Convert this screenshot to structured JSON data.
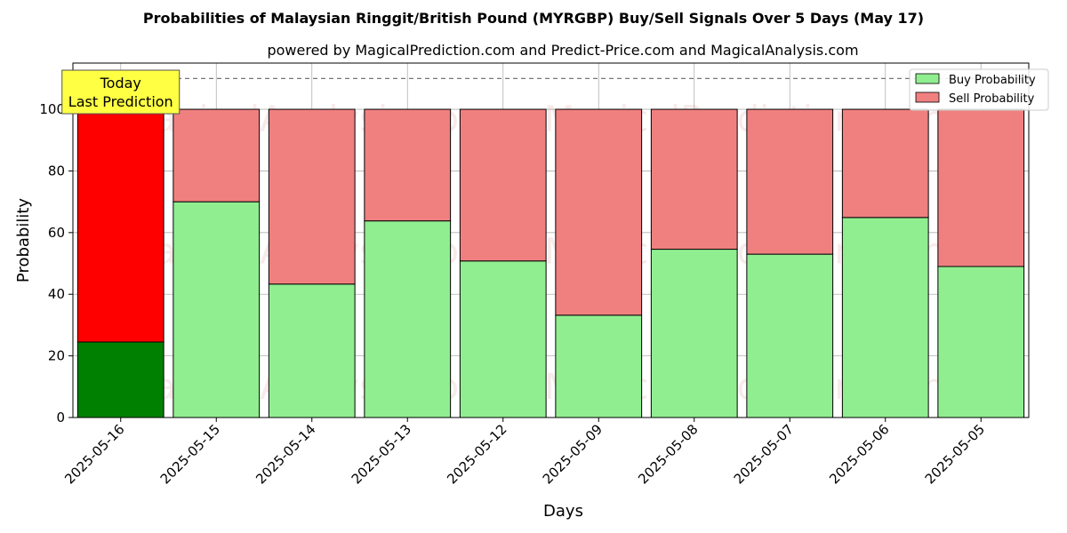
{
  "chart_data": {
    "type": "bar",
    "stacked": true,
    "title": "Probabilities of Malaysian Ringgit/British Pound (MYRGBP) Buy/Sell Signals Over 5 Days (May 17)",
    "subtitle": "powered by MagicalPrediction.com and Predict-Price.com and MagicalAnalysis.com",
    "xlabel": "Days",
    "ylabel": "Probability",
    "ylim": [
      0,
      115
    ],
    "yticks": [
      0,
      20,
      40,
      60,
      80,
      100
    ],
    "categories": [
      "2025-05-16",
      "2025-05-15",
      "2025-05-14",
      "2025-05-13",
      "2025-05-12",
      "2025-05-09",
      "2025-05-08",
      "2025-05-07",
      "2025-05-06",
      "2025-05-05"
    ],
    "series": [
      {
        "name": "Buy Probability",
        "values": [
          24.5,
          70.0,
          43.3,
          63.8,
          50.8,
          33.2,
          54.6,
          53.0,
          64.9,
          49.0
        ]
      },
      {
        "name": "Sell Probability",
        "values": [
          75.5,
          30.0,
          56.7,
          36.2,
          49.2,
          66.8,
          45.4,
          47.0,
          35.1,
          51.0
        ]
      }
    ],
    "colors": {
      "buy": "#90ee90",
      "sell": "#f08080",
      "buy_highlight": "#008000",
      "sell_highlight": "#ff0000",
      "annotation_bg": "#ffff44"
    },
    "highlight_index": 0,
    "reference_line": 110,
    "annotation": {
      "line1": "Today",
      "line2": "Last Prediction"
    },
    "legend_position": "top-right",
    "grid": true,
    "watermarks": [
      "MagicalAnalysis.com",
      "MagicalPrediction.com"
    ]
  }
}
